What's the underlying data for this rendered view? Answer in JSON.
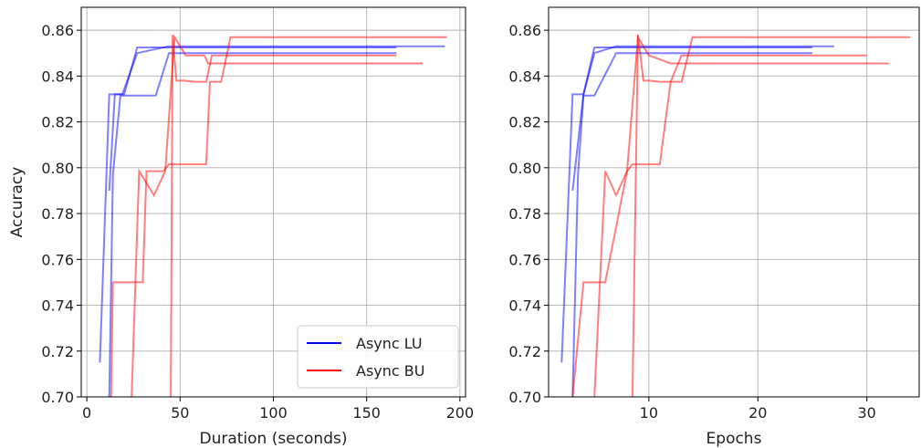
{
  "colors": {
    "lu": "#0000ff",
    "bu": "#ff0000",
    "grid": "#b0b0b0",
    "axis": "#000000"
  },
  "chart_data": [
    {
      "type": "line",
      "xlabel": "Duration (seconds)",
      "ylabel": "Accuracy",
      "xlim": [
        -3,
        203
      ],
      "ylim": [
        0.7,
        0.87
      ],
      "xticks": [
        0,
        50,
        100,
        150,
        200
      ],
      "xtick_labels": [
        "0",
        "50",
        "100",
        "150",
        "200"
      ],
      "yticks": [
        0.7,
        0.72,
        0.74,
        0.76,
        0.78,
        0.8,
        0.82,
        0.84,
        0.86
      ],
      "ytick_labels": [
        "0.70",
        "0.72",
        "0.74",
        "0.76",
        "0.78",
        "0.80",
        "0.82",
        "0.84",
        "0.86"
      ],
      "grid": true,
      "legend": {
        "position": "lower-right",
        "entries": [
          {
            "label": "Async LU",
            "color": "#0000ff"
          },
          {
            "label": "Async BU",
            "color": "#ff0000"
          }
        ]
      },
      "series": [
        {
          "group": "Async LU",
          "color": "#0000ff",
          "x": [
            7,
            12,
            14,
            17,
            20,
            27,
            37,
            44,
            166
          ],
          "y": [
            0.715,
            0.832,
            0.832,
            0.832,
            0.832,
            0.8525,
            0.8525,
            0.8525,
            0.8525
          ]
        },
        {
          "group": "Async LU",
          "color": "#0000ff",
          "x": [
            12,
            15,
            19,
            27,
            44,
            192
          ],
          "y": [
            0.79,
            0.832,
            0.832,
            0.85,
            0.853,
            0.853
          ]
        },
        {
          "group": "Async LU",
          "color": "#0000ff",
          "x": [
            12,
            14,
            18,
            22,
            27,
            37,
            44,
            166
          ],
          "y": [
            0.7,
            0.797,
            0.8315,
            0.8315,
            0.8315,
            0.8315,
            0.85,
            0.85
          ]
        },
        {
          "group": "Async BU",
          "color": "#ff0000",
          "x": [
            13,
            14,
            30,
            32,
            41,
            44,
            51,
            59,
            64,
            66,
            72,
            77,
            193
          ],
          "y": [
            0.7,
            0.75,
            0.75,
            0.7985,
            0.7985,
            0.8015,
            0.8015,
            0.8015,
            0.8015,
            0.8375,
            0.8375,
            0.857,
            0.857
          ]
        },
        {
          "group": "Async BU",
          "color": "#ff0000",
          "x": [
            24,
            28,
            36,
            42,
            47,
            53,
            63,
            65,
            180
          ],
          "y": [
            0.7,
            0.7985,
            0.788,
            0.7985,
            0.857,
            0.849,
            0.849,
            0.8455,
            0.8455
          ]
        },
        {
          "group": "Async BU",
          "color": "#ff0000",
          "x": [
            45,
            46,
            48,
            52,
            58,
            64,
            67,
            166
          ],
          "y": [
            0.7,
            0.858,
            0.838,
            0.838,
            0.8375,
            0.8375,
            0.849,
            0.849
          ]
        }
      ]
    },
    {
      "type": "line",
      "xlabel": "Epochs",
      "ylabel": "",
      "xlim": [
        0.8,
        34.8
      ],
      "ylim": [
        0.7,
        0.87
      ],
      "xticks": [
        10,
        20,
        30
      ],
      "xtick_labels": [
        "10",
        "20",
        "30"
      ],
      "yticks": [
        0.7,
        0.72,
        0.74,
        0.76,
        0.78,
        0.8,
        0.82,
        0.84,
        0.86
      ],
      "ytick_labels": [
        "0.70",
        "0.72",
        "0.74",
        "0.76",
        "0.78",
        "0.80",
        "0.82",
        "0.84",
        "0.86"
      ],
      "grid": true,
      "series": [
        {
          "group": "Async LU",
          "color": "#0000ff",
          "x": [
            2,
            3,
            4,
            5,
            6,
            7,
            25
          ],
          "y": [
            0.715,
            0.832,
            0.832,
            0.8525,
            0.8525,
            0.8525,
            0.8525
          ]
        },
        {
          "group": "Async LU",
          "color": "#0000ff",
          "x": [
            3,
            4,
            5,
            7,
            27
          ],
          "y": [
            0.79,
            0.832,
            0.85,
            0.853,
            0.853
          ]
        },
        {
          "group": "Async LU",
          "color": "#0000ff",
          "x": [
            3,
            3.5,
            4,
            5,
            7,
            25
          ],
          "y": [
            0.7,
            0.797,
            0.8315,
            0.8315,
            0.85,
            0.85
          ]
        },
        {
          "group": "Async BU",
          "color": "#ff0000",
          "x": [
            3,
            4,
            6,
            8,
            8.5,
            10,
            11,
            12,
            13,
            14,
            34
          ],
          "y": [
            0.7,
            0.75,
            0.75,
            0.7985,
            0.8015,
            0.8015,
            0.8015,
            0.8375,
            0.8375,
            0.857,
            0.857
          ]
        },
        {
          "group": "Async BU",
          "color": "#ff0000",
          "x": [
            5,
            6,
            7,
            8,
            9,
            10,
            12,
            32
          ],
          "y": [
            0.7,
            0.7985,
            0.788,
            0.7985,
            0.857,
            0.849,
            0.8455,
            0.8455
          ]
        },
        {
          "group": "Async BU",
          "color": "#ff0000",
          "x": [
            8.5,
            9,
            9.5,
            10,
            11,
            12,
            13,
            30
          ],
          "y": [
            0.7,
            0.858,
            0.838,
            0.838,
            0.8375,
            0.8375,
            0.849,
            0.849
          ]
        }
      ]
    }
  ]
}
